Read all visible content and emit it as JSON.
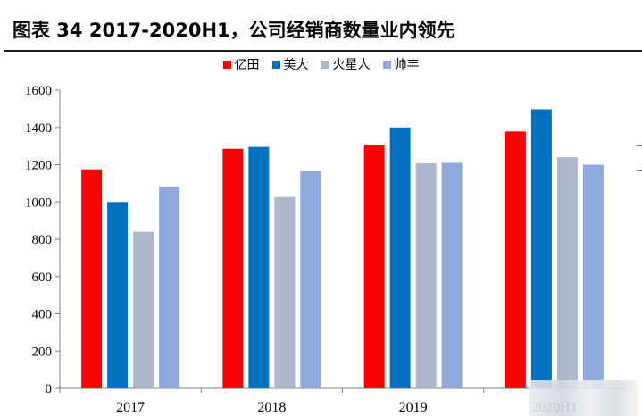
{
  "title": "图表 34 2017-2020H1，公司经销商数量业内领先",
  "colors": {
    "yidian": "#ff0000",
    "midea": "#0070c0",
    "huoxingren": "#adb9ca",
    "shuaifeng": "#8faadc"
  },
  "chart_data": {
    "type": "bar",
    "categories": [
      "2017",
      "2018",
      "2019",
      "2020H1"
    ],
    "series": [
      {
        "name": "亿田",
        "values": [
          1175,
          1285,
          1308,
          1378
        ]
      },
      {
        "name": "美大",
        "values": [
          1000,
          1295,
          1400,
          1497
        ]
      },
      {
        "name": "火星人",
        "values": [
          840,
          1027,
          1207,
          1240
        ]
      },
      {
        "name": "帅丰",
        "values": [
          1083,
          1165,
          1210,
          1200
        ]
      }
    ],
    "ylim": [
      0,
      1600
    ],
    "yticks": [
      "0",
      "200",
      "400",
      "600",
      "800",
      "1000",
      "1200",
      "1400",
      "1600"
    ],
    "legend": "top",
    "grid": false
  }
}
